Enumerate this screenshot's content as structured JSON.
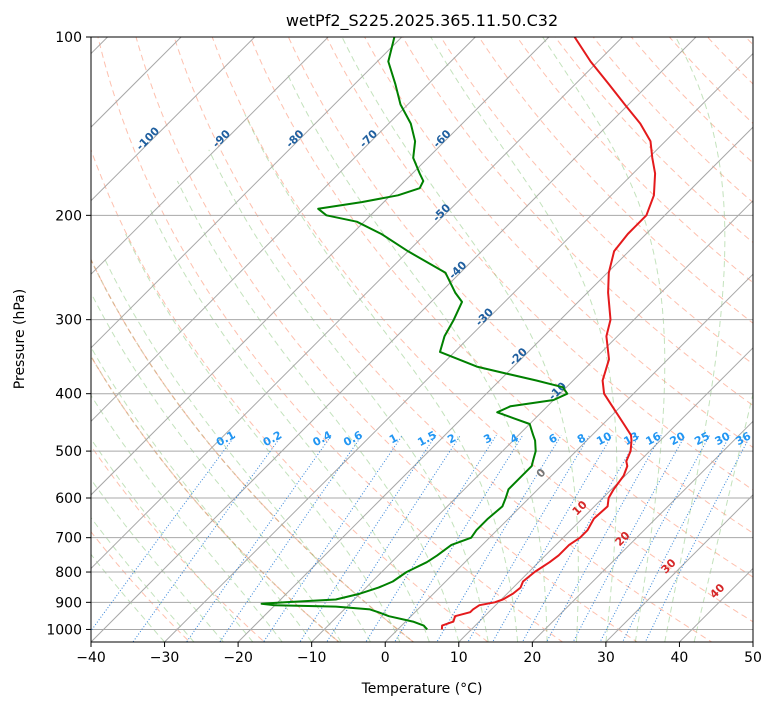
{
  "chart_data": {
    "type": "line",
    "chart_kind": "skew-t log-p",
    "title": "wetPf2_S225.2025.365.11.50.C32",
    "xlabel": "Temperature (°C)",
    "ylabel": "Pressure (hPa)",
    "xlim": [
      -40,
      50
    ],
    "ylim": [
      1050,
      100
    ],
    "y_scale": "log",
    "grid": true,
    "x_ticks": [
      -40,
      -30,
      -20,
      -10,
      0,
      10,
      20,
      30,
      40,
      50
    ],
    "x_tick_labels": [
      "−40",
      "−30",
      "−20",
      "−10",
      "0",
      "10",
      "20",
      "30",
      "40",
      "50"
    ],
    "y_ticks": [
      100,
      200,
      300,
      400,
      500,
      600,
      700,
      800,
      900,
      1000
    ],
    "y_tick_labels": [
      "100",
      "200",
      "300",
      "400",
      "500",
      "600",
      "700",
      "800",
      "900",
      "1000"
    ],
    "isotherm_labels": [
      {
        "text": "-100",
        "t": -100,
        "p": 150
      },
      {
        "text": "-90",
        "t": -90,
        "p": 150
      },
      {
        "text": "-80",
        "t": -80,
        "p": 150
      },
      {
        "text": "-70",
        "t": -70,
        "p": 150
      },
      {
        "text": "-60",
        "t": -60,
        "p": 150
      },
      {
        "text": "-50",
        "t": -50,
        "p": 150
      },
      {
        "text": "-40",
        "t": -40,
        "p": 150
      },
      {
        "text": "-30",
        "t": -30,
        "p": 150
      },
      {
        "text": "-20",
        "t": -20,
        "p": 150
      },
      {
        "text": "-10",
        "t": -10,
        "p": 150
      }
    ],
    "mixing_ratio_labels": [
      "0.1",
      "0.2",
      "0.4",
      "0.6",
      "1",
      "1.5",
      "2",
      "3",
      "4",
      "6",
      "8",
      "10",
      "13",
      "16",
      "20",
      "25",
      "30",
      "36"
    ],
    "mixing_ratio_values": [
      0.1,
      0.2,
      0.4,
      0.6,
      1,
      1.5,
      2,
      3,
      4,
      6,
      8,
      10,
      13,
      16,
      20,
      25,
      30,
      36
    ],
    "isotherm_upper_labels": [
      "0",
      "10",
      "20",
      "30",
      "40"
    ],
    "isotherm_upper_values": [
      0,
      10,
      20,
      30,
      40
    ],
    "series": [
      {
        "name": "",
        "color": "#e41a1c",
        "p": [
          1000,
          985,
          970,
          950,
          935,
          925,
          910,
          900,
          890,
          870,
          850,
          830,
          800,
          770,
          750,
          720,
          700,
          680,
          650,
          620,
          600,
          580,
          550,
          530,
          520,
          500,
          480,
          470,
          450,
          420,
          400,
          380,
          350,
          320,
          300,
          270,
          250,
          230,
          215,
          200,
          185,
          170,
          160,
          150,
          140,
          130,
          120,
          110,
          100
        ],
        "t": [
          6.0,
          5.5,
          6.5,
          6.0,
          7.5,
          7.5,
          7.8,
          9.5,
          10.2,
          10.8,
          11.0,
          10.5,
          10.8,
          11.5,
          11.8,
          11.8,
          12.3,
          12.3,
          11.6,
          11.8,
          10.8,
          10.3,
          9.8,
          9.0,
          8.2,
          7.4,
          6.1,
          5.3,
          2.8,
          -1.2,
          -4.0,
          -6.0,
          -8.0,
          -11.5,
          -13.2,
          -17.2,
          -19.8,
          -22.0,
          -22.5,
          -22.5,
          -24.2,
          -27.0,
          -29.5,
          -32.0,
          -35.8,
          -40.5,
          -45.5,
          -51.0,
          -56.5
        ]
      },
      {
        "name": "",
        "color": "#008000",
        "p": [
          1000,
          985,
          970,
          950,
          935,
          925,
          915,
          910,
          905,
          900,
          890,
          870,
          850,
          830,
          800,
          770,
          750,
          720,
          700,
          680,
          650,
          620,
          600,
          580,
          550,
          530,
          520,
          500,
          480,
          470,
          460,
          450,
          440,
          430,
          420,
          410,
          400,
          390,
          380,
          370,
          360,
          340,
          320,
          300,
          280,
          270,
          250,
          230,
          215,
          205,
          200,
          195,
          190,
          185,
          180,
          175,
          170,
          160,
          150,
          140,
          130,
          120,
          110,
          100
        ],
        "t": [
          4.0,
          3.0,
          1.0,
          -3.0,
          -5.0,
          -6.5,
          -11.5,
          -20.0,
          -22.0,
          -19.0,
          -12.5,
          -10.0,
          -8.3,
          -7.2,
          -6.6,
          -5.2,
          -4.7,
          -4.2,
          -2.5,
          -2.8,
          -2.8,
          -2.5,
          -3.2,
          -4.0,
          -4.0,
          -4.0,
          -4.5,
          -5.5,
          -7.0,
          -8.0,
          -9.0,
          -10.0,
          -13.0,
          -16.0,
          -15.0,
          -10.0,
          -9.0,
          -10.5,
          -15.0,
          -20.0,
          -25.0,
          -32.0,
          -33.5,
          -34.5,
          -35.8,
          -38.0,
          -42.0,
          -50.0,
          -56.0,
          -61.0,
          -66.0,
          -68.0,
          -63.0,
          -59.0,
          -57.0,
          -57.5,
          -59.0,
          -62.0,
          -64.0,
          -67.0,
          -71.0,
          -74.5,
          -78.5,
          -81.0
        ]
      }
    ]
  }
}
